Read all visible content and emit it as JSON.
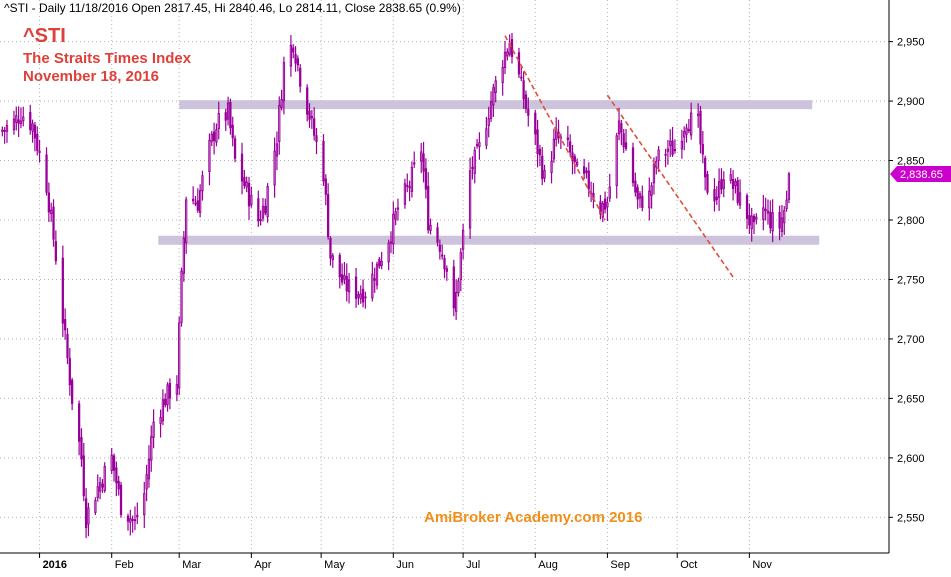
{
  "header": {
    "text": "^STI - Daily 11/18/2016 Open 2817.45, Hi 2840.46, Lo 2814.11, Close 2838.65 (0.9%)"
  },
  "annotations": {
    "title": "^STI",
    "subtitle_1": "The Straits Times Index",
    "subtitle_2": "November 18, 2016",
    "watermark": "AmiBroker Academy.com   2016",
    "last_value_label": "2,838.65"
  },
  "colors": {
    "bars": "#99009a",
    "grid": "#b4b4b4",
    "support_resistance": "#cdc3dd",
    "trendline": "#e0503a",
    "title": "#e0403a",
    "watermark": "#f0901a",
    "last_value_tag": "#cc00cc"
  },
  "chart_data": {
    "type": "ohlc",
    "y_ticks": [
      2550,
      2600,
      2650,
      2700,
      2750,
      2800,
      2850,
      2900,
      2950
    ],
    "y_tick_labels": [
      "2,550",
      "2,600",
      "2,650",
      "2,700",
      "2,750",
      "2,800",
      "2,850",
      "2,900",
      "2,950"
    ],
    "ylim": [
      2520,
      2985
    ],
    "x_range": [
      "2015-12-15",
      "2016-12-31"
    ],
    "x_ticks": [
      {
        "date": "2016-01-01",
        "label": "2016",
        "bold": true
      },
      {
        "date": "2016-02-01",
        "label": "Feb"
      },
      {
        "date": "2016-03-01",
        "label": "Mar"
      },
      {
        "date": "2016-04-01",
        "label": "Apr"
      },
      {
        "date": "2016-05-01",
        "label": "May"
      },
      {
        "date": "2016-06-01",
        "label": "Jun"
      },
      {
        "date": "2016-07-01",
        "label": "Jul"
      },
      {
        "date": "2016-08-01",
        "label": "Aug"
      },
      {
        "date": "2016-09-01",
        "label": "Sep"
      },
      {
        "date": "2016-10-01",
        "label": "Oct"
      },
      {
        "date": "2016-11-01",
        "label": "Nov"
      }
    ],
    "close_anchors": [
      [
        "2015-12-16",
        2875
      ],
      [
        "2015-12-21",
        2882
      ],
      [
        "2015-12-24",
        2890
      ],
      [
        "2015-12-29",
        2880
      ],
      [
        "2016-01-04",
        2830
      ],
      [
        "2016-01-08",
        2770
      ],
      [
        "2016-01-12",
        2700
      ],
      [
        "2016-01-15",
        2650
      ],
      [
        "2016-01-19",
        2600
      ],
      [
        "2016-01-21",
        2550
      ],
      [
        "2016-01-26",
        2575
      ],
      [
        "2016-02-01",
        2600
      ],
      [
        "2016-02-05",
        2560
      ],
      [
        "2016-02-11",
        2545
      ],
      [
        "2016-02-15",
        2570
      ],
      [
        "2016-02-19",
        2630
      ],
      [
        "2016-02-24",
        2650
      ],
      [
        "2016-02-29",
        2665
      ],
      [
        "2016-03-02",
        2750
      ],
      [
        "2016-03-04",
        2820
      ],
      [
        "2016-03-09",
        2815
      ],
      [
        "2016-03-14",
        2860
      ],
      [
        "2016-03-17",
        2880
      ],
      [
        "2016-03-22",
        2890
      ],
      [
        "2016-03-25",
        2850
      ],
      [
        "2016-03-30",
        2825
      ],
      [
        "2016-04-04",
        2800
      ],
      [
        "2016-04-07",
        2815
      ],
      [
        "2016-04-12",
        2870
      ],
      [
        "2016-04-15",
        2930
      ],
      [
        "2016-04-19",
        2950
      ],
      [
        "2016-04-22",
        2920
      ],
      [
        "2016-04-27",
        2880
      ],
      [
        "2016-05-02",
        2840
      ],
      [
        "2016-05-05",
        2770
      ],
      [
        "2016-05-11",
        2745
      ],
      [
        "2016-05-16",
        2740
      ],
      [
        "2016-05-20",
        2740
      ],
      [
        "2016-05-25",
        2760
      ],
      [
        "2016-05-31",
        2790
      ],
      [
        "2016-06-03",
        2810
      ],
      [
        "2016-06-08",
        2830
      ],
      [
        "2016-06-13",
        2860
      ],
      [
        "2016-06-16",
        2800
      ],
      [
        "2016-06-21",
        2780
      ],
      [
        "2016-06-24",
        2760
      ],
      [
        "2016-06-27",
        2720
      ],
      [
        "2016-06-30",
        2770
      ],
      [
        "2016-07-04",
        2840
      ],
      [
        "2016-07-08",
        2860
      ],
      [
        "2016-07-13",
        2900
      ],
      [
        "2016-07-18",
        2935
      ],
      [
        "2016-07-21",
        2950
      ],
      [
        "2016-07-25",
        2920
      ],
      [
        "2016-07-28",
        2895
      ],
      [
        "2016-08-02",
        2860
      ],
      [
        "2016-08-05",
        2835
      ],
      [
        "2016-08-10",
        2870
      ],
      [
        "2016-08-15",
        2860
      ],
      [
        "2016-08-19",
        2840
      ],
      [
        "2016-08-24",
        2830
      ],
      [
        "2016-08-29",
        2810
      ],
      [
        "2016-09-01",
        2815
      ],
      [
        "2016-09-06",
        2880
      ],
      [
        "2016-09-09",
        2860
      ],
      [
        "2016-09-14",
        2815
      ],
      [
        "2016-09-19",
        2820
      ],
      [
        "2016-09-22",
        2850
      ],
      [
        "2016-09-27",
        2860
      ],
      [
        "2016-09-30",
        2860
      ],
      [
        "2016-10-05",
        2885
      ],
      [
        "2016-10-10",
        2880
      ],
      [
        "2016-10-13",
        2830
      ],
      [
        "2016-10-18",
        2820
      ],
      [
        "2016-10-21",
        2840
      ],
      [
        "2016-10-26",
        2825
      ],
      [
        "2016-10-31",
        2805
      ],
      [
        "2016-11-03",
        2790
      ],
      [
        "2016-11-07",
        2810
      ],
      [
        "2016-11-10",
        2800
      ],
      [
        "2016-11-14",
        2795
      ],
      [
        "2016-11-17",
        2815
      ],
      [
        "2016-11-18",
        2838.65
      ]
    ],
    "last_bar": {
      "date": "2016-11-18",
      "open": 2817.45,
      "high": 2840.46,
      "low": 2814.11,
      "close": 2838.65
    },
    "horizontal_bands": [
      {
        "y": 2897,
        "x_start": "2016-03-01",
        "x_end": "2016-11-28"
      },
      {
        "y": 2783,
        "x_start": "2016-02-21",
        "x_end": "2016-12-01"
      }
    ],
    "trendlines": [
      {
        "x1": "2016-07-19",
        "y1": 2955,
        "x2": "2016-08-31",
        "y2": 2800
      },
      {
        "x1": "2016-09-01",
        "y1": 2905,
        "x2": "2016-10-25",
        "y2": 2752
      }
    ],
    "grid": true
  }
}
